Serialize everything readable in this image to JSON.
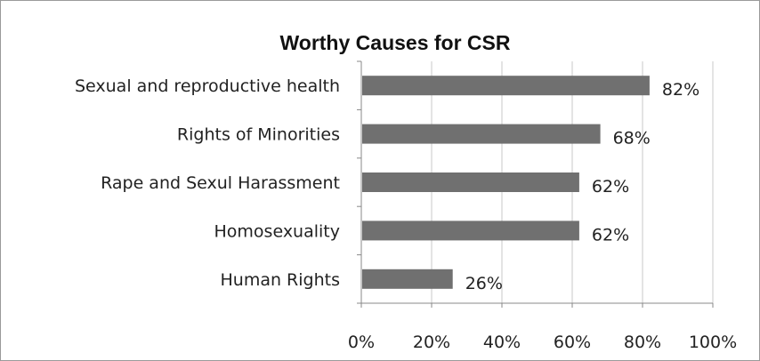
{
  "chart_data": {
    "type": "bar",
    "orientation": "horizontal",
    "title": "Worthy Causes for CSR",
    "categories": [
      "Sexual and reproductive health",
      "Rights of Minorities",
      "Rape and Sexul Harassment",
      "Homosexuality",
      "Human Rights"
    ],
    "values": [
      82,
      68,
      62,
      62,
      26
    ],
    "data_labels": [
      "82%",
      "68%",
      "62%",
      "62%",
      "26%"
    ],
    "x_ticks": [
      "0%",
      "20%",
      "40%",
      "60%",
      "80%",
      "100%"
    ],
    "xlim": [
      0,
      100
    ],
    "grid": "vertical",
    "legend": "none",
    "bar_color": "#707070",
    "grid_color": "#c8c8c8"
  }
}
